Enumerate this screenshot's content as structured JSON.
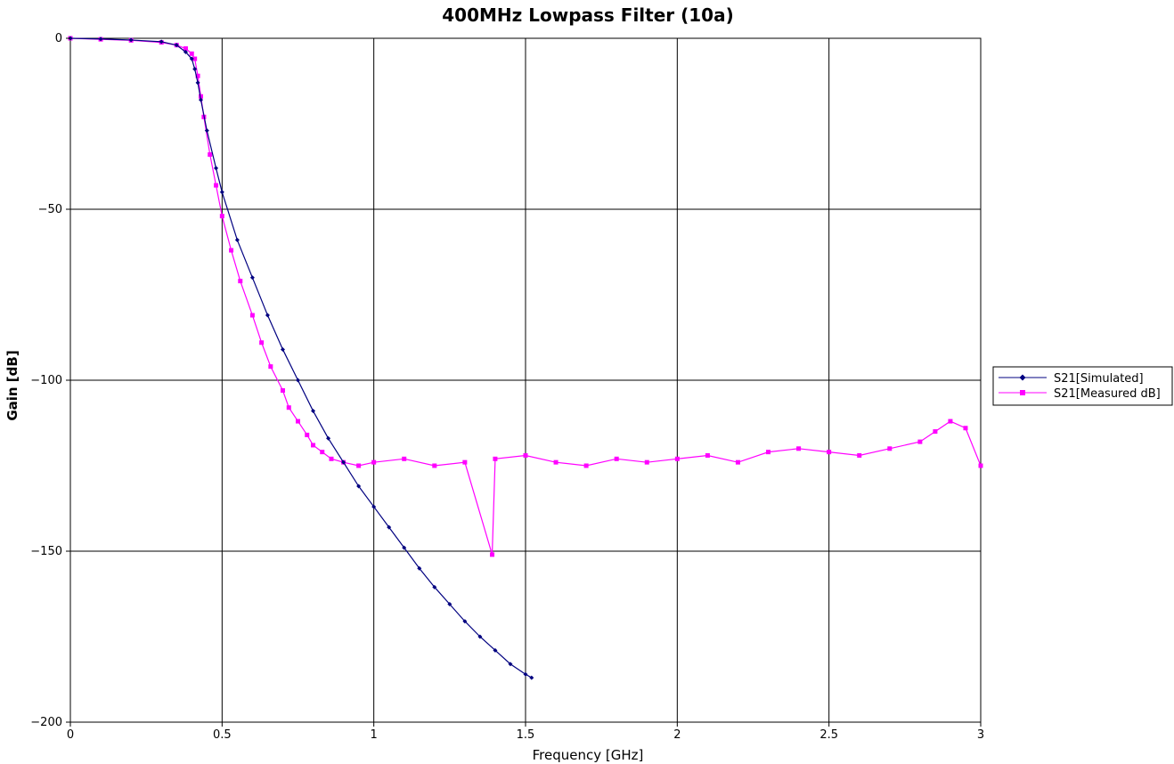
{
  "chart_data": {
    "type": "line",
    "title": "400MHz Lowpass Filter (10a)",
    "xlabel": "Frequency [GHz]",
    "ylabel": "Gain [dB]",
    "xlim": [
      0,
      3
    ],
    "ylim": [
      -200,
      0
    ],
    "x_ticks": [
      0,
      0.5,
      1,
      1.5,
      2,
      2.5,
      3
    ],
    "x_tick_labels": [
      "0",
      "0.5",
      "1",
      "1.5",
      "2",
      "2.5",
      "3"
    ],
    "y_ticks": [
      0,
      -50,
      -100,
      -150,
      -200
    ],
    "y_tick_labels": [
      "0",
      "−50",
      "−100",
      "−150",
      "−200"
    ],
    "grid": true,
    "legend_position": "right",
    "series": [
      {
        "name": "S21[Simulated]",
        "color": "#000080",
        "marker": "diamond",
        "x": [
          0,
          0.1,
          0.2,
          0.3,
          0.35,
          0.38,
          0.4,
          0.41,
          0.42,
          0.43,
          0.45,
          0.48,
          0.5,
          0.55,
          0.6,
          0.65,
          0.7,
          0.75,
          0.8,
          0.85,
          0.9,
          0.95,
          1.0,
          1.05,
          1.1,
          1.15,
          1.2,
          1.25,
          1.3,
          1.35,
          1.4,
          1.45,
          1.5,
          1.52
        ],
        "y": [
          0,
          -0.2,
          -0.5,
          -1.0,
          -2.0,
          -4.0,
          -6.0,
          -9.0,
          -13.0,
          -18.0,
          -27.0,
          -38.0,
          -45.0,
          -59.0,
          -70.0,
          -81.0,
          -91.0,
          -100.0,
          -109.0,
          -117.0,
          -124.0,
          -131.0,
          -137.0,
          -143.0,
          -149.0,
          -155.0,
          -160.5,
          -165.5,
          -170.5,
          -175.0,
          -179.0,
          -183.0,
          -186.0,
          -187.0
        ]
      },
      {
        "name": "S21[Measured dB]",
        "color": "#FF00FF",
        "marker": "square",
        "x": [
          0,
          0.1,
          0.2,
          0.3,
          0.35,
          0.38,
          0.4,
          0.41,
          0.42,
          0.43,
          0.44,
          0.46,
          0.48,
          0.5,
          0.53,
          0.56,
          0.6,
          0.63,
          0.66,
          0.7,
          0.72,
          0.75,
          0.78,
          0.8,
          0.83,
          0.86,
          0.9,
          0.95,
          1.0,
          1.1,
          1.2,
          1.3,
          1.39,
          1.4,
          1.5,
          1.6,
          1.7,
          1.8,
          1.9,
          2.0,
          2.1,
          2.2,
          2.3,
          2.4,
          2.5,
          2.6,
          2.7,
          2.8,
          2.85,
          2.9,
          2.95,
          3.0
        ],
        "y": [
          0,
          -0.3,
          -0.6,
          -1.2,
          -2.0,
          -3.0,
          -4.5,
          -6.0,
          -11.0,
          -17.0,
          -23.0,
          -34.0,
          -43.0,
          -52.0,
          -62.0,
          -71.0,
          -81.0,
          -89.0,
          -96.0,
          -103.0,
          -108.0,
          -112.0,
          -116.0,
          -119.0,
          -121.0,
          -123.0,
          -124.0,
          -125.0,
          -124.0,
          -123.0,
          -125.0,
          -124.0,
          -151.0,
          -123.0,
          -122.0,
          -124.0,
          -125.0,
          -123.0,
          -124.0,
          -123.0,
          -122.0,
          -124.0,
          -121.0,
          -120.0,
          -121.0,
          -122.0,
          -120.0,
          -118.0,
          -115.0,
          -112.0,
          -114.0,
          -125.0
        ]
      }
    ]
  }
}
